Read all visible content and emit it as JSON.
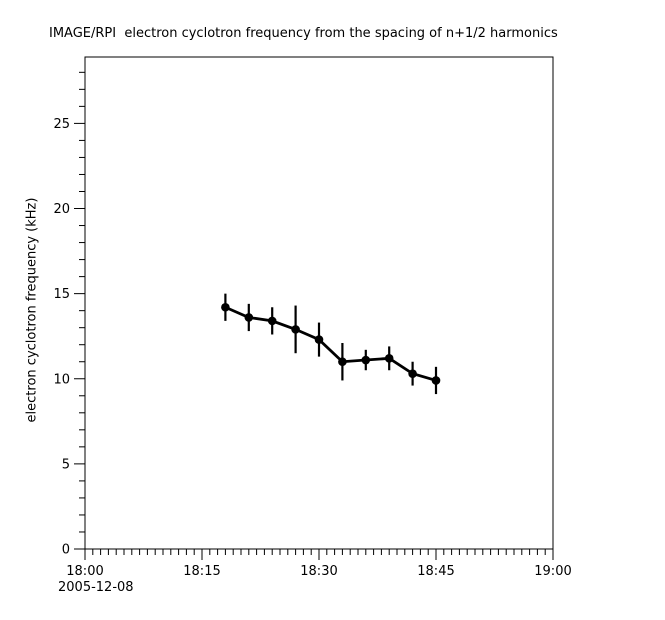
{
  "colors": {
    "foreground": "#000000",
    "background": "#ffffff"
  },
  "chart_data": {
    "type": "line",
    "title": "IMAGE/RPI  electron cyclotron frequency from the spacing of n+1/2 harmonics",
    "ylabel": "electron cyclotron frequency (kHz)",
    "date_label": "2005-12-08",
    "grid": false,
    "legend": "none",
    "x_axis": {
      "start_label": "18:00",
      "end_label": "19:00",
      "minor_tick_step_minutes": 1,
      "major_ticks": [
        {
          "minute": 0,
          "label": "18:00"
        },
        {
          "minute": 15,
          "label": "18:15"
        },
        {
          "minute": 30,
          "label": "18:30"
        },
        {
          "minute": 45,
          "label": "18:45"
        },
        {
          "minute": 60,
          "label": "19:00"
        }
      ]
    },
    "y_axis": {
      "min": 0,
      "max": 28.9,
      "minor_tick_step": 1,
      "major_ticks": [
        0,
        5,
        10,
        15,
        20,
        25
      ]
    },
    "series": [
      {
        "name": "electron cyclotron frequency",
        "marker": "filled-circle",
        "color": "#000000",
        "error_bars": "vertical-no-caps",
        "points": [
          {
            "time": "18:18",
            "minute": 18,
            "value_khz": 14.2,
            "error_khz": 0.8
          },
          {
            "time": "18:21",
            "minute": 21,
            "value_khz": 13.6,
            "error_khz": 0.8
          },
          {
            "time": "18:24",
            "minute": 24,
            "value_khz": 13.4,
            "error_khz": 0.8
          },
          {
            "time": "18:27",
            "minute": 27,
            "value_khz": 12.9,
            "error_khz": 1.4
          },
          {
            "time": "18:30",
            "minute": 30,
            "value_khz": 12.3,
            "error_khz": 1.0
          },
          {
            "time": "18:33",
            "minute": 33,
            "value_khz": 11.0,
            "error_khz": 1.1
          },
          {
            "time": "18:36",
            "minute": 36,
            "value_khz": 11.1,
            "error_khz": 0.6
          },
          {
            "time": "18:39",
            "minute": 39,
            "value_khz": 11.2,
            "error_khz": 0.7
          },
          {
            "time": "18:42",
            "minute": 42,
            "value_khz": 10.3,
            "error_khz": 0.7
          },
          {
            "time": "18:45",
            "minute": 45,
            "value_khz": 9.9,
            "error_khz": 0.8
          }
        ]
      }
    ]
  }
}
